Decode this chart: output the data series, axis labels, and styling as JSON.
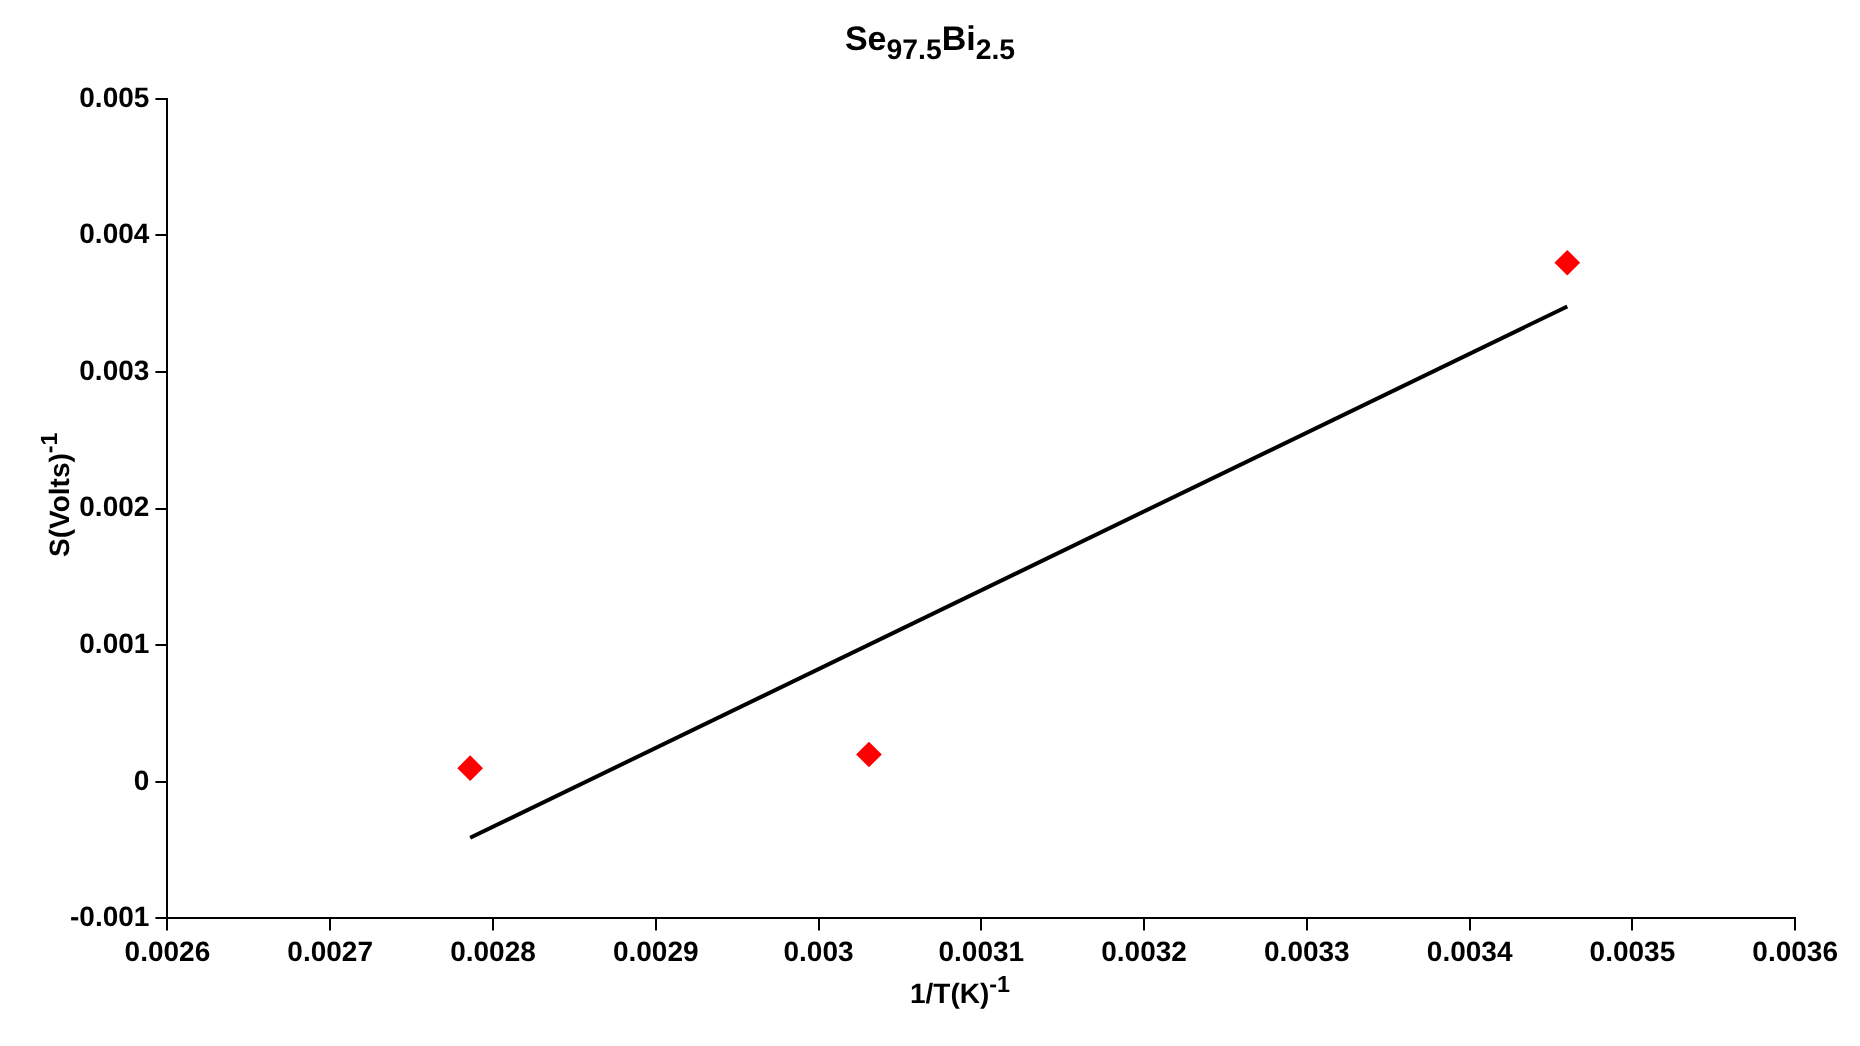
{
  "chart_data": {
    "type": "scatter",
    "title": "Se$_{97.5}$Bi$_{2.5}$",
    "xlabel": "1/T(K)$^{-1}$",
    "ylabel": "S(Volts)$^{-1}$",
    "xlim": [
      0.0026,
      0.0036
    ],
    "xticks": [
      0.0026,
      0.0027,
      0.0028,
      0.0029,
      0.003,
      0.0031,
      0.0032,
      0.0033,
      0.0034,
      0.0035,
      0.0036
    ],
    "ylim": [
      -0.001,
      0.005
    ],
    "yticks": [
      -0.001,
      0,
      0.001,
      0.002,
      0.003,
      0.004,
      0.005
    ],
    "grid": false,
    "legend": false,
    "marker": "diamond",
    "series": [
      {
        "type": "scatter",
        "color": "#ff0000",
        "x": [
          0.002786,
          0.003031,
          0.00346
        ],
        "values": [
          0.0001,
          0.0002,
          0.0038
        ]
      },
      {
        "type": "line",
        "color": "#000000",
        "marker": "none",
        "x": [
          0.002786,
          0.00346
        ],
        "values": [
          -0.00041,
          0.00348
        ]
      }
    ]
  }
}
